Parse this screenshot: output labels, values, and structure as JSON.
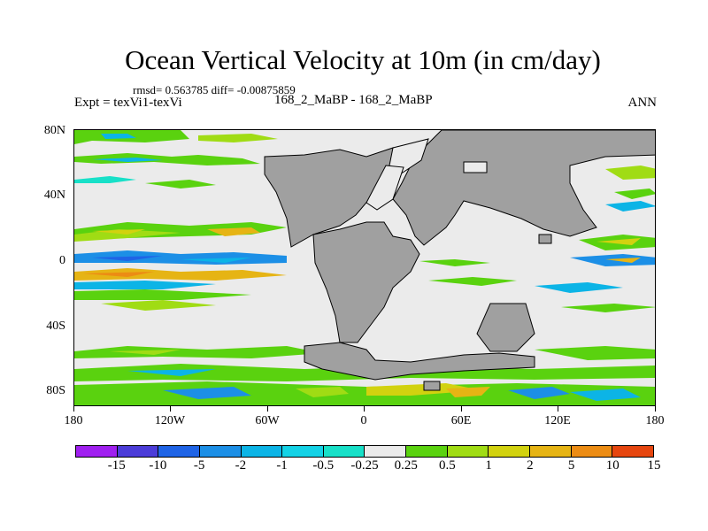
{
  "title": "Ocean Vertical Velocity at 10m (in cm/day)",
  "stats": "rmsd= 0.563785 diff= -0.00875859",
  "expt": "Expt = texVi1-texVi",
  "runs": "168_2_MaBP - 168_2_MaBP",
  "season": "ANN",
  "y_labels": [
    "80N",
    "40N",
    "0",
    "40S",
    "80S"
  ],
  "x_labels": [
    "180",
    "120W",
    "60W",
    "0",
    "60E",
    "120E",
    "180"
  ],
  "colorbar": {
    "levels": [
      "-15",
      "-10",
      "-5",
      "-2",
      "-1",
      "-0.5",
      "-0.25",
      "0.25",
      "0.5",
      "1",
      "2",
      "5",
      "10",
      "15"
    ],
    "colors": [
      "#a020f0",
      "#4b3cd8",
      "#1f64e6",
      "#1c8fe6",
      "#0cb4e6",
      "#14d2e6",
      "#18e0c8",
      "#ebebeb",
      "#5ad20f",
      "#a0dc14",
      "#d2d20f",
      "#e6b414",
      "#ec8c14",
      "#e6460f"
    ]
  },
  "land_color": "#a0a0a0"
}
